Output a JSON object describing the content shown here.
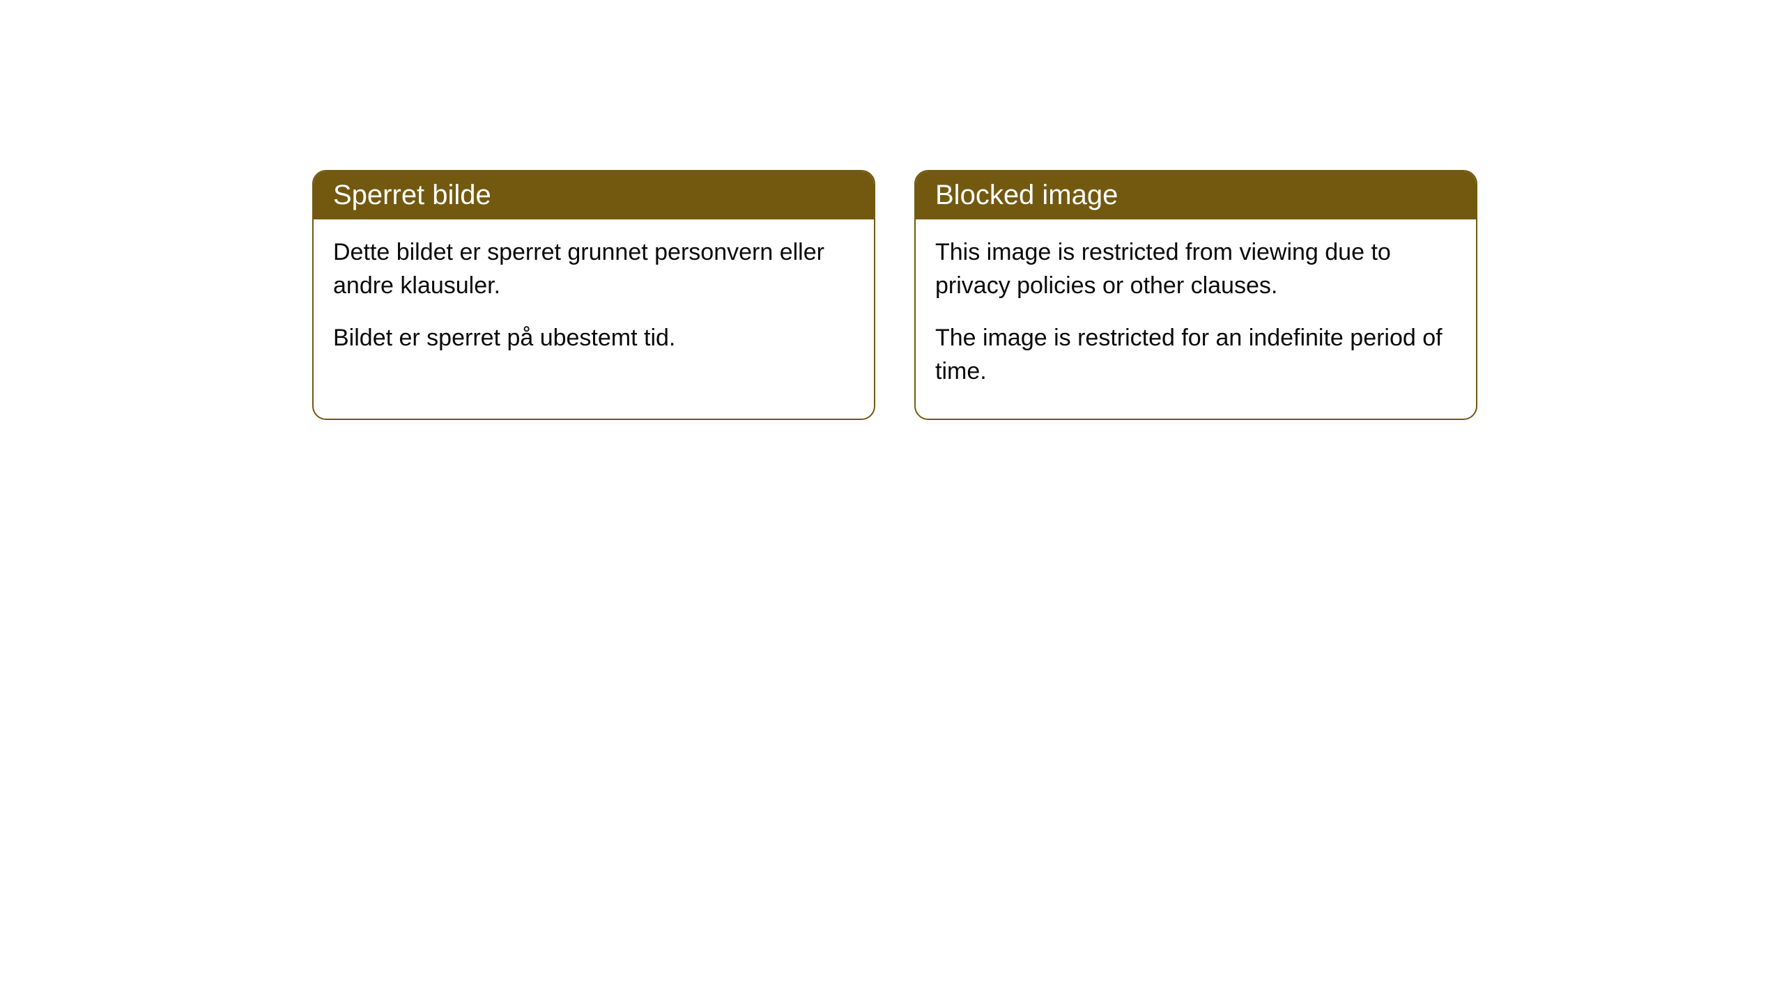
{
  "cards": [
    {
      "title": "Sperret bilde",
      "paragraph1": "Dette bildet er sperret grunnet personvern eller andre klausuler.",
      "paragraph2": "Bildet er sperret på ubestemt tid."
    },
    {
      "title": "Blocked image",
      "paragraph1": "This image is restricted from viewing due to privacy policies or other clauses.",
      "paragraph2": "The image is restricted for an indefinite period of time."
    }
  ],
  "styling": {
    "header_bg_color": "#735910",
    "header_text_color": "#ffffff",
    "border_color": "#735910",
    "body_text_color": "#0a0a0a",
    "card_bg_color": "#ffffff",
    "page_bg_color": "#ffffff",
    "border_radius": 20,
    "header_fontsize": 40,
    "body_fontsize": 34
  }
}
